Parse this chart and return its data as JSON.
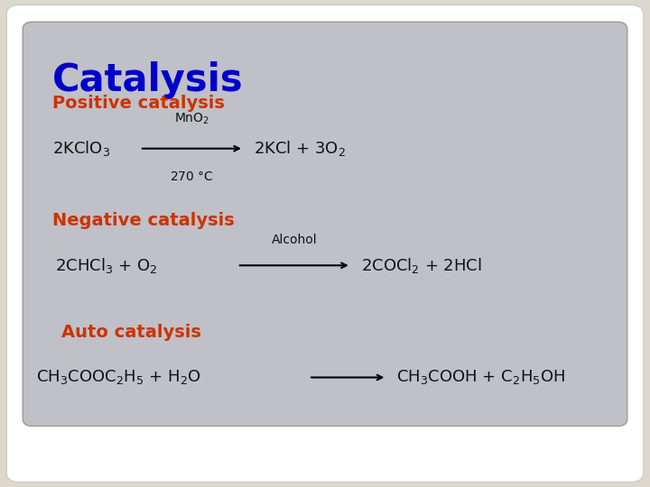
{
  "title": "Catalysis",
  "title_color": "#0000CC",
  "title_fontsize": 30,
  "title_fontweight": "bold",
  "section1_label": "Positive catalysis",
  "section2_label": "Negative catalysis",
  "section3_label": "Auto catalysis",
  "section_color": "#CC3300",
  "section_fontsize": 14,
  "section_fontweight": "bold",
  "eq_color": "#111111",
  "eq_fontsize": 13,
  "bg_outer": "#DDD8CC",
  "outer_box_facecolor": "#FFFFFF",
  "inner_box_facecolor": "#C0C0C8",
  "outer_box_edgecolor": "#CCCCCC",
  "inner_box_edgecolor": "#999999"
}
